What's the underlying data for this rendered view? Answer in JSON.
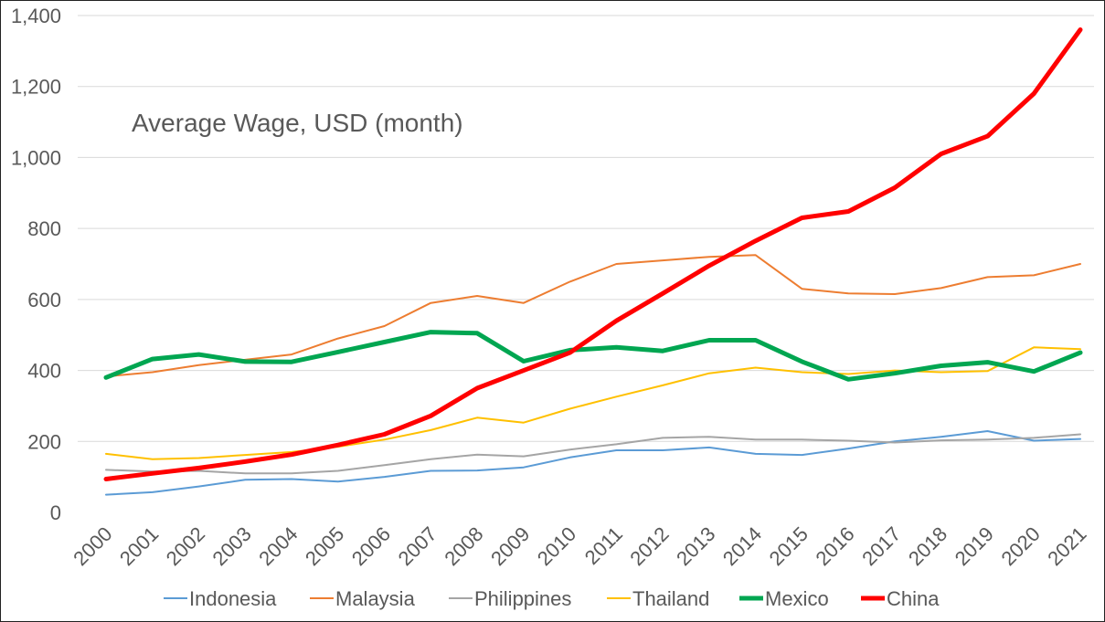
{
  "chart_data": {
    "type": "line",
    "title": "Average Wage, USD (month)",
    "xlabel": "",
    "ylabel": "",
    "ylim": [
      0,
      1400
    ],
    "yticks": [
      0,
      200,
      400,
      600,
      800,
      1000,
      1200,
      1400
    ],
    "ytick_labels": [
      "0",
      "200",
      "400",
      "600",
      "800",
      "1,000",
      "1,200",
      "1,400"
    ],
    "grid": "horizontal",
    "legend_position": "bottom",
    "categories": [
      "2000",
      "2001",
      "2002",
      "2003",
      "2004",
      "2005",
      "2006",
      "2007",
      "2008",
      "2009",
      "2010",
      "2011",
      "2012",
      "2013",
      "2014",
      "2015",
      "2016",
      "2017",
      "2018",
      "2019",
      "2020",
      "2021"
    ],
    "series": [
      {
        "name": "Indonesia",
        "color": "#5b9bd5",
        "width": 2,
        "values": [
          50,
          57,
          73,
          92,
          94,
          87,
          100,
          117,
          118,
          127,
          155,
          175,
          175,
          183,
          165,
          162,
          180,
          200,
          213,
          229,
          202,
          207
        ]
      },
      {
        "name": "Malaysia",
        "color": "#ed7d31",
        "width": 2,
        "values": [
          383,
          395,
          415,
          430,
          445,
          490,
          525,
          590,
          610,
          590,
          650,
          700,
          710,
          720,
          725,
          630,
          617,
          615,
          632,
          663,
          668,
          700
        ]
      },
      {
        "name": "Philippines",
        "color": "#a5a5a5",
        "width": 2,
        "values": [
          120,
          115,
          117,
          110,
          110,
          117,
          133,
          150,
          163,
          158,
          177,
          192,
          210,
          213,
          205,
          205,
          202,
          197,
          203,
          205,
          210,
          220
        ]
      },
      {
        "name": "Thailand",
        "color": "#ffc000",
        "width": 2,
        "values": [
          165,
          150,
          153,
          162,
          170,
          185,
          205,
          232,
          267,
          253,
          292,
          326,
          358,
          392,
          408,
          395,
          390,
          400,
          395,
          398,
          465,
          460
        ]
      },
      {
        "name": "Mexico",
        "color": "#00a651",
        "width": 5,
        "values": [
          380,
          432,
          445,
          425,
          424,
          452,
          480,
          508,
          505,
          426,
          457,
          465,
          455,
          485,
          485,
          425,
          375,
          392,
          413,
          423,
          397,
          450
        ]
      },
      {
        "name": "China",
        "color": "#ff0000",
        "width": 5,
        "values": [
          94,
          110,
          125,
          143,
          163,
          190,
          220,
          272,
          350,
          400,
          450,
          540,
          617,
          695,
          765,
          830,
          848,
          915,
          1010,
          1060,
          1180,
          1360
        ]
      }
    ]
  }
}
